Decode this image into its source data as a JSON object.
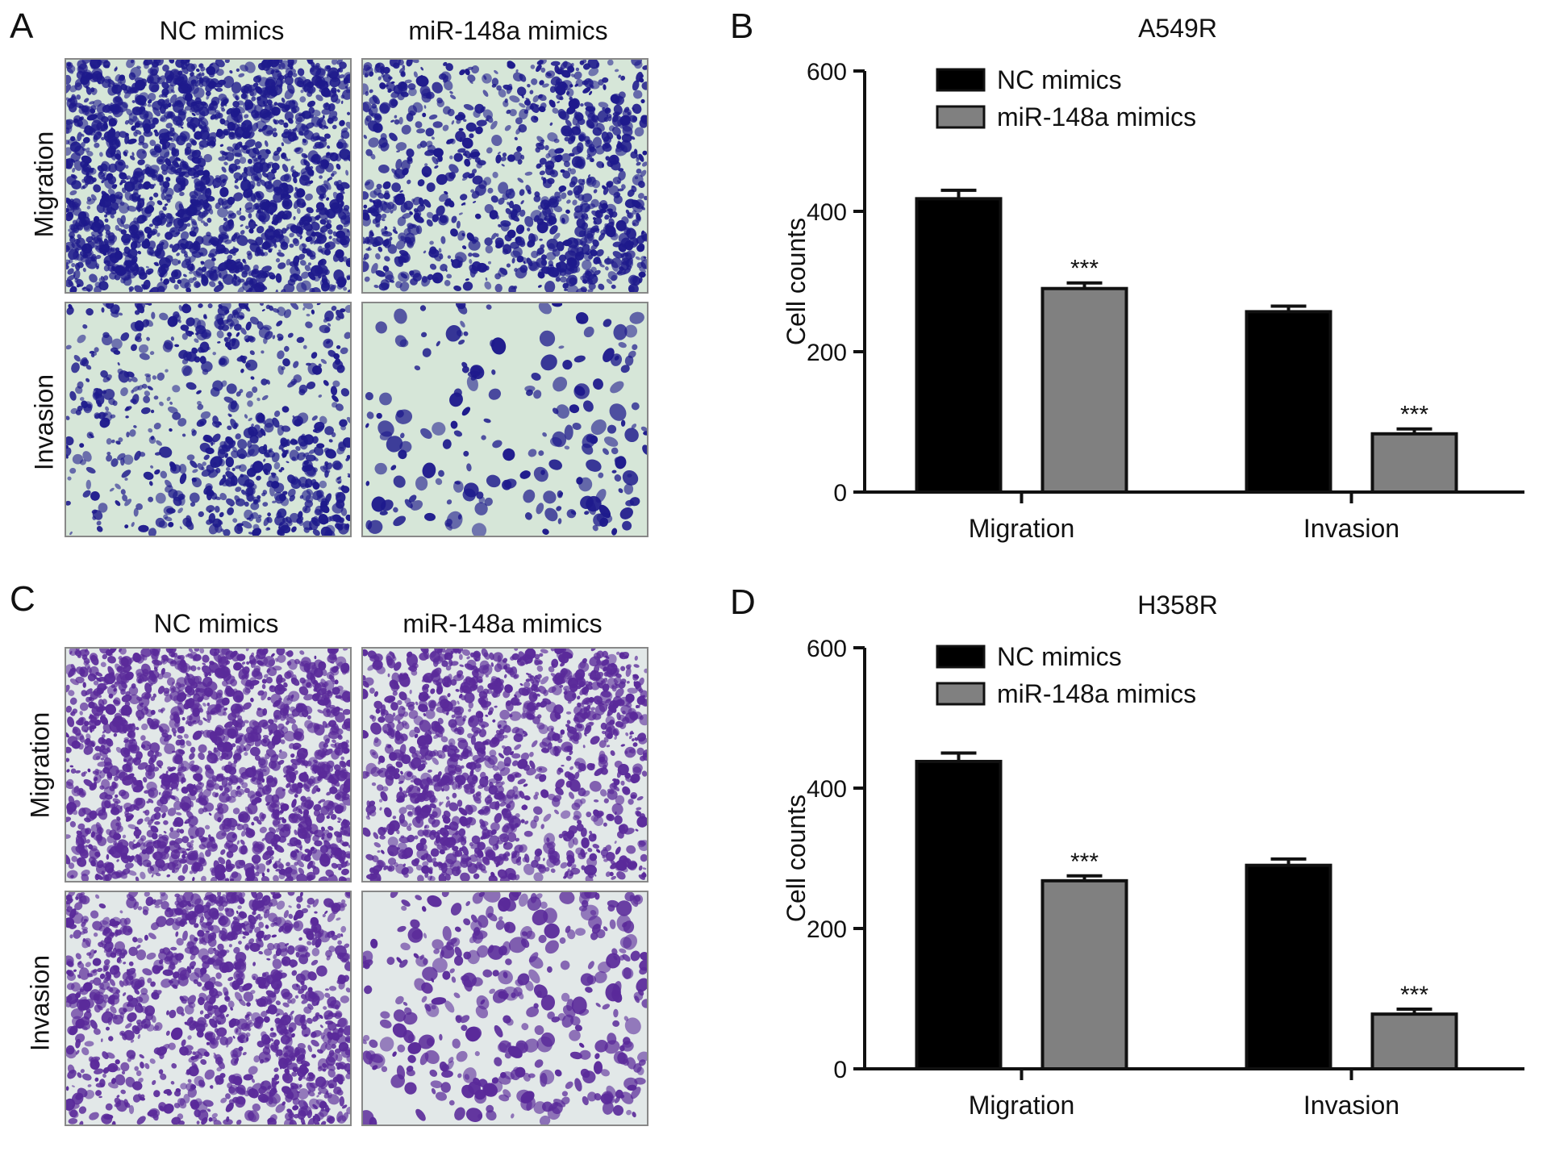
{
  "panels": {
    "A": {
      "letter": "A",
      "col_headers": [
        "NC mimics",
        "miR-148a mimics"
      ],
      "row_headers": [
        "Migration",
        "Invasion"
      ]
    },
    "B": {
      "letter": "B"
    },
    "C": {
      "letter": "C",
      "col_headers": [
        "NC mimics",
        "miR-148a mimics"
      ],
      "row_headers": [
        "Migration",
        "Invasion"
      ]
    },
    "D": {
      "letter": "D"
    }
  },
  "micrographs": {
    "A": {
      "stain_color": "#1e1a8c",
      "background_color": "#d6e6d8",
      "density": [
        [
          0.95,
          0.72
        ],
        [
          0.6,
          0.22
        ]
      ]
    },
    "C": {
      "stain_color": "#5a2a9a",
      "background_color": "#e2e8e8",
      "density": [
        [
          0.9,
          0.75
        ],
        [
          0.82,
          0.3
        ]
      ]
    }
  },
  "chart_data": [
    {
      "type": "bar",
      "title": "A549R",
      "ylabel": "Cell counts",
      "xlabel": "",
      "ylim": [
        0,
        600
      ],
      "yticks": [
        0,
        200,
        400,
        600
      ],
      "categories": [
        "Migration",
        "Invasion"
      ],
      "series": [
        {
          "name": "NC mimics",
          "values": [
            418,
            257
          ],
          "errors": [
            12,
            8
          ],
          "color": "#000000"
        },
        {
          "name": "miR-148a mimics",
          "values": [
            290,
            83
          ],
          "errors": [
            8,
            7
          ],
          "color": "#808080"
        }
      ],
      "annotations": [
        {
          "series": 1,
          "category": 0,
          "text": "***"
        },
        {
          "series": 1,
          "category": 1,
          "text": "***"
        }
      ],
      "legend_position": "top-left",
      "grid": false
    },
    {
      "type": "bar",
      "title": "H358R",
      "ylabel": "Cell counts",
      "xlabel": "",
      "ylim": [
        0,
        600
      ],
      "yticks": [
        0,
        200,
        400,
        600
      ],
      "categories": [
        "Migration",
        "Invasion"
      ],
      "series": [
        {
          "name": "NC mimics",
          "values": [
            438,
            290
          ],
          "errors": [
            12,
            9
          ],
          "color": "#000000"
        },
        {
          "name": "miR-148a mimics",
          "values": [
            268,
            78
          ],
          "errors": [
            7,
            7
          ],
          "color": "#808080"
        }
      ],
      "annotations": [
        {
          "series": 1,
          "category": 0,
          "text": "***"
        },
        {
          "series": 1,
          "category": 1,
          "text": "***"
        }
      ],
      "legend_position": "top-left",
      "grid": false
    }
  ]
}
